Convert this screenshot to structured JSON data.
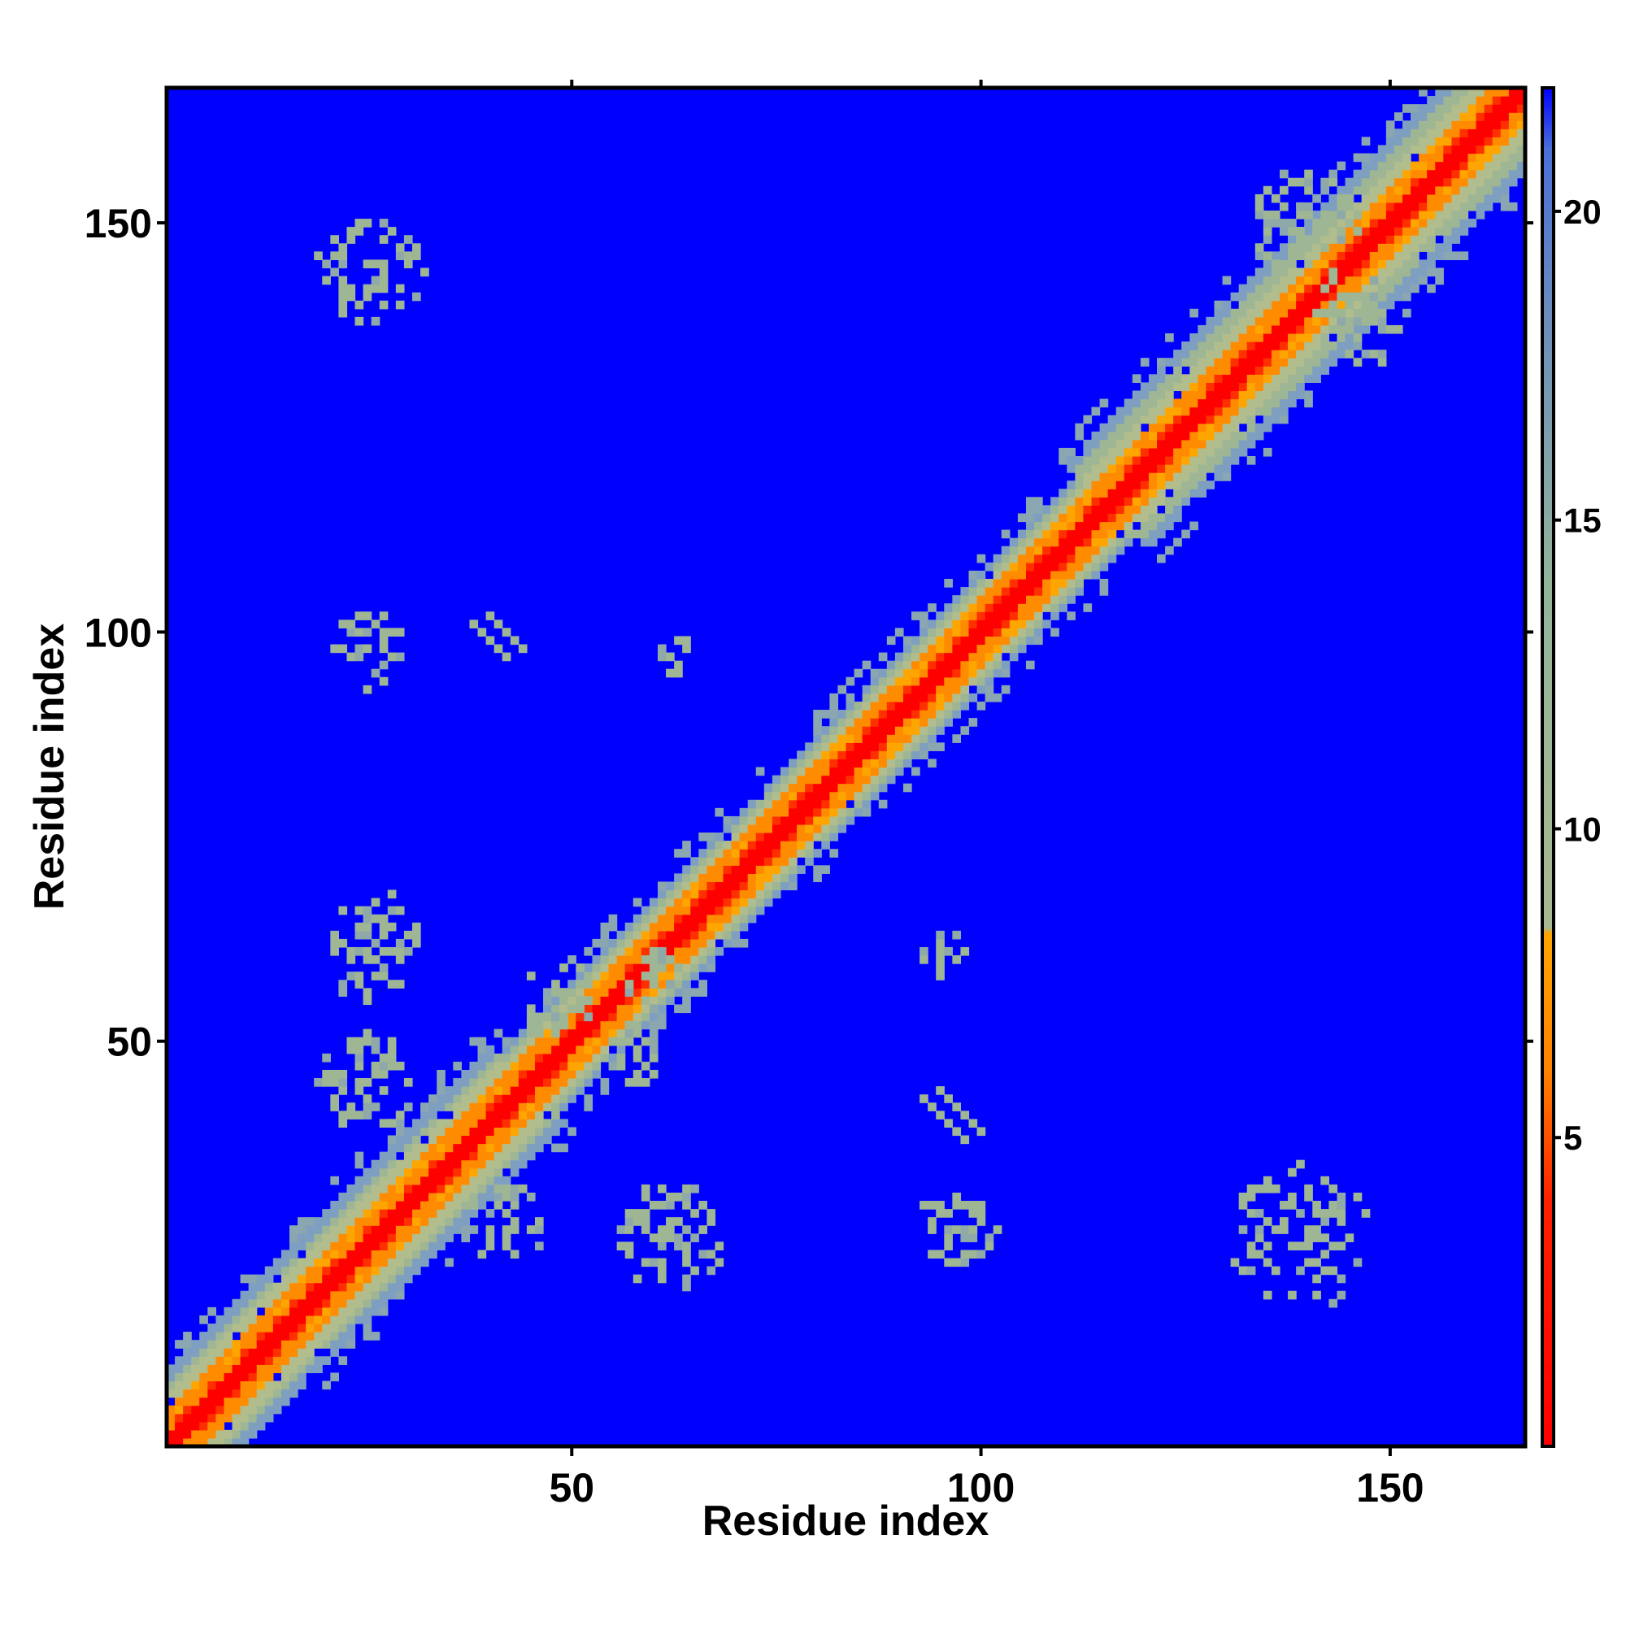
{
  "chart_data": {
    "type": "heatmap",
    "title": "",
    "xlabel": "Residue index",
    "ylabel": "Residue index",
    "xlim": [
      1,
      166
    ],
    "ylim": [
      1,
      166
    ],
    "x_ticks": [
      50,
      100,
      150
    ],
    "x_tick_labels": [
      "50",
      "100",
      "150"
    ],
    "y_ticks": [
      50,
      100,
      150
    ],
    "y_tick_labels": [
      "50",
      "100",
      "150"
    ],
    "grid": false,
    "value_description": "pairwise residue distance (symmetric contact map)",
    "colorbar": {
      "range": [
        0,
        22
      ],
      "ticks": [
        5,
        10,
        15,
        20
      ],
      "tick_labels": [
        "5",
        "10",
        "15",
        "20"
      ],
      "stops": [
        {
          "value": 0,
          "color": "#ff0000"
        },
        {
          "value": 4,
          "color": "#ff2000"
        },
        {
          "value": 6,
          "color": "#ff8000"
        },
        {
          "value": 8.3,
          "color": "#ffa500"
        },
        {
          "value": 8.4,
          "color": "#a8b890"
        },
        {
          "value": 14,
          "color": "#93b49a"
        },
        {
          "value": 18,
          "color": "#6f90b8"
        },
        {
          "value": 21,
          "color": "#4a70d8"
        },
        {
          "value": 22,
          "color": "#0000ff"
        }
      ]
    },
    "background_color": "#0000ff",
    "diagonal_bands": [
      {
        "from": 1,
        "to": 166,
        "core_color": "#ff0000",
        "inner_color": "#ff8c00",
        "halo_color": "#9fb694"
      }
    ],
    "contact_clusters": [
      {
        "x": 25,
        "y": 144,
        "spread": 7
      },
      {
        "x": 25,
        "y": 98,
        "spread": 5
      },
      {
        "x": 25,
        "y": 62,
        "spread": 7
      },
      {
        "x": 25,
        "y": 45,
        "spread": 6
      },
      {
        "x": 42,
        "y": 28,
        "spread": 5
      },
      {
        "x": 62,
        "y": 26,
        "spread": 7
      },
      {
        "x": 97,
        "y": 27,
        "spread": 5
      },
      {
        "x": 139,
        "y": 26,
        "spread": 9
      },
      {
        "x": 140,
        "y": 150,
        "spread": 7
      },
      {
        "x": 146,
        "y": 138,
        "spread": 6
      },
      {
        "x": 48,
        "y": 55,
        "spread": 5
      },
      {
        "x": 60,
        "y": 58,
        "spread": 4
      },
      {
        "x": 57,
        "y": 48,
        "spread": 4
      },
      {
        "x": 95,
        "y": 61,
        "spread": 3
      },
      {
        "x": 62,
        "y": 97,
        "spread": 3
      }
    ],
    "strand_pairs": [
      {
        "x_start": 38,
        "y_start": 101,
        "x_end": 42,
        "y_end": 96
      },
      {
        "x_start": 93,
        "y_start": 43,
        "x_end": 98,
        "y_end": 38
      }
    ]
  }
}
